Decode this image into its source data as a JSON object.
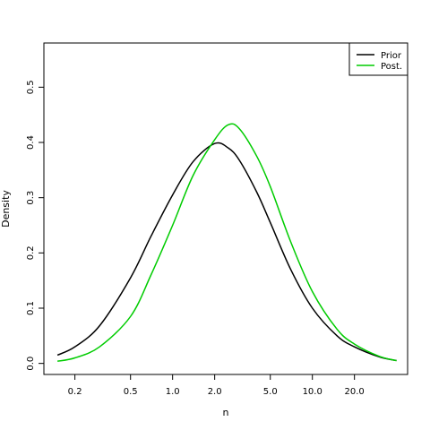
{
  "chart_data": {
    "type": "line",
    "title": "",
    "xlabel": "n",
    "ylabel": "Density",
    "x_scale": "log",
    "xlim": [
      0.12,
      48
    ],
    "ylim": [
      -0.02,
      0.58
    ],
    "x_ticks": [
      0.2,
      0.5,
      1.0,
      2.0,
      5.0,
      10.0,
      20.0
    ],
    "x_tick_labels": [
      "0.2",
      "0.5",
      "1.0",
      "2.0",
      "5.0",
      "10.0",
      "20.0"
    ],
    "y_ticks": [
      0.0,
      0.1,
      0.2,
      0.3,
      0.4,
      0.5
    ],
    "y_tick_labels": [
      "0.0",
      "0.1",
      "0.2",
      "0.3",
      "0.4",
      "0.5"
    ],
    "grid": false,
    "legend_position": "top-right",
    "series": [
      {
        "name": "Prior",
        "color": "#000000",
        "points": [
          [
            0.15,
            0.015
          ],
          [
            0.2,
            0.03
          ],
          [
            0.3,
            0.068
          ],
          [
            0.5,
            0.155
          ],
          [
            0.7,
            0.23
          ],
          [
            1.0,
            0.305
          ],
          [
            1.4,
            0.365
          ],
          [
            2.0,
            0.398
          ],
          [
            2.5,
            0.39
          ],
          [
            3.0,
            0.368
          ],
          [
            4.0,
            0.31
          ],
          [
            5.0,
            0.255
          ],
          [
            7.0,
            0.17
          ],
          [
            10.0,
            0.1
          ],
          [
            15.0,
            0.05
          ],
          [
            20.0,
            0.03
          ],
          [
            30.0,
            0.012
          ],
          [
            40.0,
            0.005
          ]
        ]
      },
      {
        "name": "Post.",
        "color": "#00cc00",
        "points": [
          [
            0.15,
            0.004
          ],
          [
            0.2,
            0.01
          ],
          [
            0.3,
            0.03
          ],
          [
            0.5,
            0.085
          ],
          [
            0.7,
            0.16
          ],
          [
            1.0,
            0.25
          ],
          [
            1.4,
            0.34
          ],
          [
            2.0,
            0.405
          ],
          [
            2.5,
            0.432
          ],
          [
            3.0,
            0.425
          ],
          [
            4.0,
            0.375
          ],
          [
            5.0,
            0.32
          ],
          [
            7.0,
            0.22
          ],
          [
            10.0,
            0.13
          ],
          [
            15.0,
            0.062
          ],
          [
            20.0,
            0.035
          ],
          [
            30.0,
            0.013
          ],
          [
            40.0,
            0.005
          ]
        ]
      }
    ]
  }
}
